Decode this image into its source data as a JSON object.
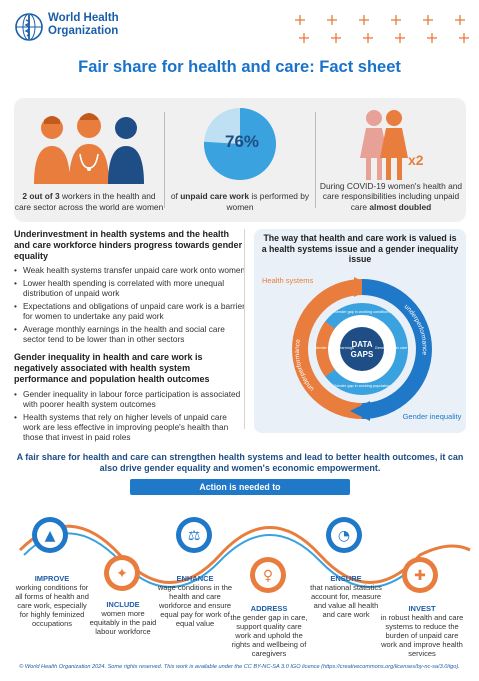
{
  "header": {
    "org_line1": "World Health",
    "org_line2": "Organization",
    "title": "Fair share for health and care: Fact sheet"
  },
  "stats": [
    {
      "text_bold": "2 out of 3",
      "text": " workers in the health and care sector across the world are women"
    },
    {
      "value": "76%",
      "text_pre": "of ",
      "text_bold": "unpaid care work",
      "text_post": " is performed by women"
    },
    {
      "multiplier": "x2",
      "text_pre": "During COVID-19 women's health and care responsibilities including unpaid care ",
      "text_bold": "almost doubled"
    }
  ],
  "left": {
    "section1_title": "Underinvestment in health systems and the health and care workforce hinders progress towards gender equality",
    "section1_items": [
      "Weak health systems transfer unpaid care work onto women",
      "Lower health spending is correlated with more unequal distribution of unpaid work",
      "Expectations and obligations of unpaid care work is a barrier for women to undertake any paid work",
      "Average monthly earnings in the health and social care sector tend to be lower than in other sectors"
    ],
    "section2_title": "Gender inequality in health and care work is negatively associated with health system performance and population health outcomes",
    "section2_items": [
      "Gender inequality in labour force participation is associated with poorer health system outcomes",
      "Health systems that rely on higher levels of unpaid care work are less effective in improving people's health than those that invest in paid roles"
    ]
  },
  "right": {
    "title": "The way that health and care work is valued is a health systems issue and a gender inequality issue",
    "label_health": "Health systems",
    "label_gender": "Gender inequality",
    "arc_under": "underperformance",
    "arc_under2": "underperformance",
    "center_l1": "DATA",
    "center_l2": "GAPS",
    "gap_top": "Gender gap in working conditions",
    "gap_left": "Gender gap in earnings",
    "gap_right": "Gender gap in care",
    "gap_bottom": "Gender gap in working population"
  },
  "lead": "A fair share for health and care can strengthen health systems and lead to better health outcomes, it can also drive gender equality and women's economic empowerment.",
  "action_banner": "Action is needed to",
  "actions": [
    {
      "title": "IMPROVE",
      "text": "working conditions for all forms of health and care work, especially for highly feminized occupations"
    },
    {
      "title": "INCLUDE",
      "text": "women more equitably in the paid labour workforce"
    },
    {
      "title": "ENHANCE",
      "text": "wage conditions in the health and care workforce and ensure equal pay for work of equal value"
    },
    {
      "title": "ADDRESS",
      "text": "the gender gap in care, support quality care work and uphold the rights and wellbeing of caregivers"
    },
    {
      "title": "ENSURE",
      "text": "that national statistics account for, measure and value all health and care work"
    },
    {
      "title": "INVEST",
      "text": "in robust health and care systems to reduce the burden of unpaid care work and improve health services"
    }
  ],
  "footer": "© World Health Organization 2024. Some rights reserved. This work is available under the CC BY-NC-SA 3.0 IGO licence (https://creativecommons.org/licenses/by-nc-sa/3.0/igo).",
  "colors": {
    "orange": "#e87d3e",
    "blue": "#1f78c8",
    "navy": "#1f4e86"
  }
}
